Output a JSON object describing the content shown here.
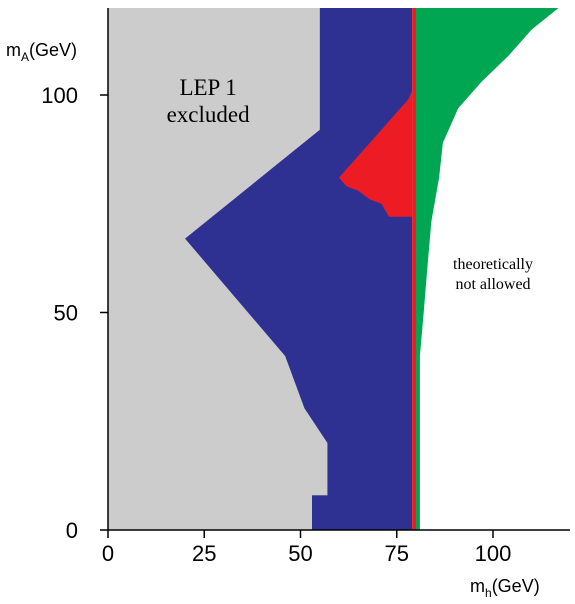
{
  "chart_data": {
    "type": "area",
    "xlabel": {
      "main": "m",
      "sub": "h",
      "unit": "(GeV)"
    },
    "ylabel": {
      "main": "m",
      "sub": "A",
      "unit": "(GeV)"
    },
    "xlim": [
      0,
      120
    ],
    "ylim": [
      0,
      120
    ],
    "xticks": [
      0,
      25,
      50,
      75,
      100
    ],
    "yticks": [
      0,
      50,
      100
    ],
    "grid": false,
    "colors": {
      "lep1": "#cccccc",
      "excluded_blue": "#2e3192",
      "red_band": "#ed1c24",
      "green_band": "#00a651",
      "theory": "#ffffff"
    },
    "regions": [
      {
        "id": "lep1",
        "color_key": "lep1",
        "points": [
          [
            0,
            0
          ],
          [
            0,
            120
          ],
          [
            55,
            120
          ],
          [
            55,
            92
          ],
          [
            20,
            67
          ],
          [
            46,
            40
          ],
          [
            51,
            28
          ],
          [
            57,
            20
          ],
          [
            57,
            8
          ],
          [
            53,
            8
          ],
          [
            53,
            0
          ]
        ]
      },
      {
        "id": "excluded_blue",
        "color_key": "excluded_blue",
        "points": [
          [
            55,
            120
          ],
          [
            79,
            120
          ],
          [
            79,
            0
          ],
          [
            53,
            0
          ],
          [
            53,
            8
          ],
          [
            57,
            8
          ],
          [
            57,
            20
          ],
          [
            51,
            28
          ],
          [
            46,
            40
          ],
          [
            20,
            67
          ],
          [
            55,
            92
          ]
        ]
      },
      {
        "id": "red_band_upper",
        "color_key": "red_band",
        "points": [
          [
            60,
            81
          ],
          [
            62,
            83
          ],
          [
            66,
            87
          ],
          [
            70,
            91
          ],
          [
            74,
            95
          ],
          [
            78,
            99
          ],
          [
            79,
            101
          ],
          [
            79,
            72
          ],
          [
            73,
            72
          ],
          [
            71,
            75
          ],
          [
            68,
            76
          ],
          [
            65,
            78
          ],
          [
            62,
            79
          ]
        ]
      },
      {
        "id": "red_line",
        "color_key": "red_band",
        "points": [
          [
            79,
            0
          ],
          [
            80,
            0
          ],
          [
            80,
            120
          ],
          [
            79,
            120
          ]
        ]
      },
      {
        "id": "green_band",
        "color_key": "green_band",
        "points": [
          [
            80,
            120
          ],
          [
            117,
            120
          ],
          [
            110,
            115
          ],
          [
            104,
            109
          ],
          [
            97,
            103
          ],
          [
            91,
            97
          ],
          [
            87,
            89
          ],
          [
            86,
            81
          ],
          [
            84,
            71
          ],
          [
            83,
            61
          ],
          [
            82,
            50
          ],
          [
            81,
            40
          ],
          [
            81,
            30
          ],
          [
            81,
            20
          ],
          [
            81,
            0
          ],
          [
            80,
            0
          ]
        ]
      }
    ],
    "annotations": [
      {
        "id": "lep1",
        "lines": [
          "LEP 1",
          "excluded"
        ],
        "x": 26,
        "y": 100
      },
      {
        "id": "theory",
        "lines": [
          "theoretically",
          "not allowed"
        ],
        "x": 100,
        "y": 60
      }
    ]
  }
}
